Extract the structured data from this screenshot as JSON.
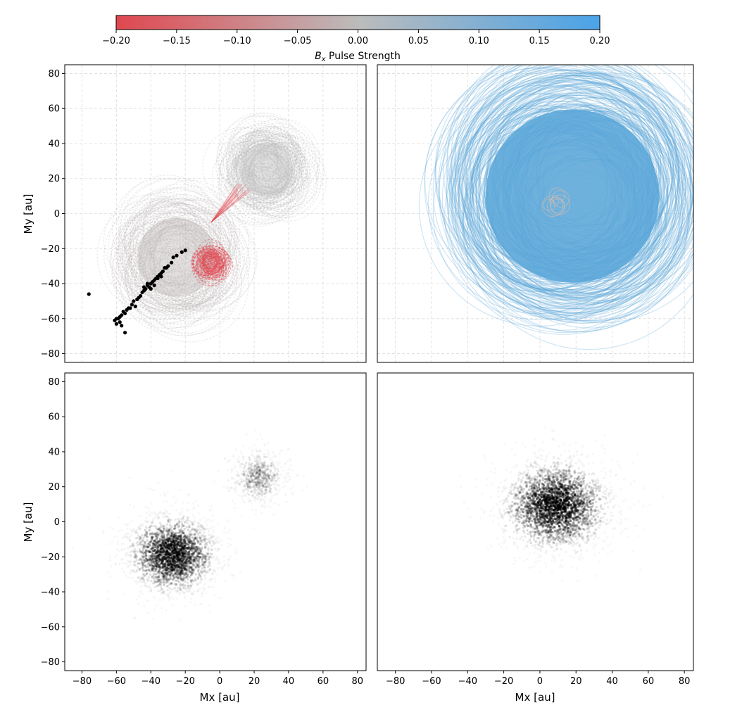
{
  "colorbar": {
    "label": "Pulse Strength",
    "label_symbol": "B",
    "label_subscript": "x",
    "range": [
      -0.2,
      0.2
    ],
    "ticks": [
      "−0.20",
      "−0.15",
      "−0.10",
      "−0.05",
      "0.00",
      "0.05",
      "0.10",
      "0.15",
      "0.20"
    ],
    "colors": {
      "negative": "#e0474f",
      "zero": "#bcbcbc",
      "positive": "#4aa3e8"
    }
  },
  "axes": {
    "xlabel": "Mx [au]",
    "ylabel": "My [au]",
    "xlim": [
      -90,
      85
    ],
    "ylim": [
      -85,
      85
    ],
    "x_ticks": [
      "−80",
      "−60",
      "−40",
      "−20",
      "0",
      "20",
      "40",
      "60",
      "80"
    ],
    "y_ticks": [
      "80",
      "60",
      "40",
      "20",
      "0",
      "−20",
      "−40",
      "−60",
      "−80"
    ],
    "grid": true
  },
  "chart_data": [
    {
      "type": "line",
      "panel": "top-left",
      "description_series": [
        {
          "name": "",
          "color": "#bfb8b8",
          "center": [
            -25,
            -25
          ],
          "radius": 38
        },
        {
          "name": "",
          "color": "#bdbdbd",
          "center": [
            27,
            25
          ],
          "radius": 26
        },
        {
          "name": "",
          "color": "#e0474f",
          "center": [
            -5,
            -28
          ],
          "radius": 10
        }
      ],
      "points": [
        [
          -76,
          -46
        ],
        [
          -61,
          -61
        ],
        [
          -60,
          -63
        ],
        [
          -59,
          -60
        ],
        [
          -58,
          -62
        ],
        [
          -57,
          -64
        ],
        [
          -56,
          -56
        ],
        [
          -55,
          -68
        ],
        [
          -54,
          -55
        ],
        [
          -53,
          -54
        ],
        [
          -52,
          -54
        ],
        [
          -51,
          -52
        ],
        [
          -50,
          -50
        ],
        [
          -49,
          -53
        ],
        [
          -48,
          -49
        ],
        [
          -47,
          -48
        ],
        [
          -46,
          -47
        ],
        [
          -45,
          -45
        ],
        [
          -44,
          -44
        ],
        [
          -43,
          -43
        ],
        [
          -42,
          -41
        ],
        [
          -41,
          -42
        ],
        [
          -40,
          -40
        ],
        [
          -39,
          -39
        ],
        [
          -38,
          -38
        ],
        [
          -37,
          -37
        ],
        [
          -36,
          -36
        ],
        [
          -35,
          -35
        ],
        [
          -34,
          -34
        ],
        [
          -33,
          -33
        ],
        [
          -32,
          -31
        ],
        [
          -31,
          -31
        ],
        [
          -30,
          -30
        ],
        [
          -28,
          -28
        ],
        [
          -27,
          -25
        ],
        [
          -25,
          -24
        ],
        [
          -22,
          -22
        ],
        [
          -20,
          -21
        ],
        [
          -44,
          -42
        ],
        [
          -42,
          -40
        ],
        [
          -40,
          -43
        ],
        [
          -38,
          -41
        ],
        [
          -36,
          -37
        ],
        [
          -34,
          -36
        ],
        [
          -60,
          -60
        ],
        [
          -58,
          -59
        ],
        [
          -57,
          -58
        ],
        [
          -55,
          -57
        ]
      ]
    },
    {
      "type": "line",
      "panel": "top-right",
      "description_series": [
        {
          "name": "",
          "color": "#5aa6d8",
          "center": [
            18,
            12
          ],
          "radius": 55
        },
        {
          "name": "",
          "color": "#c8b9b5",
          "center": [
            8,
            8
          ],
          "radius": 6
        }
      ]
    },
    {
      "type": "heatmap",
      "panel": "bottom-left",
      "blobs": [
        {
          "center": [
            -28,
            -18
          ],
          "spread": [
            14,
            12
          ],
          "peak": 0.85
        },
        {
          "center": [
            22,
            26
          ],
          "spread": [
            9,
            9
          ],
          "peak": 0.25
        }
      ]
    },
    {
      "type": "heatmap",
      "panel": "bottom-right",
      "blobs": [
        {
          "center": [
            8,
            10
          ],
          "spread": [
            16,
            14
          ],
          "peak": 0.95
        }
      ]
    }
  ]
}
